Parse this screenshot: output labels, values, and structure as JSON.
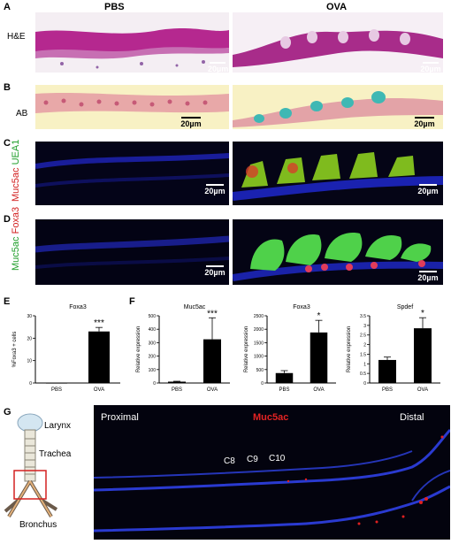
{
  "panel_a": {
    "letter": "A",
    "col_pbs": "PBS",
    "col_ova": "OVA",
    "row_label": "H&E",
    "scale": "20µm"
  },
  "panel_b": {
    "letter": "B",
    "row_label": "AB",
    "scale": "20µm"
  },
  "panel_c": {
    "letter": "C",
    "label_red": "Muc5ac",
    "label_green": "UEA1",
    "scale": "20µm"
  },
  "panel_d": {
    "letter": "D",
    "label_green": "Muc5ac",
    "label_red": "Foxa3",
    "scale": "20µm"
  },
  "panel_e": {
    "letter": "E"
  },
  "panel_f": {
    "letter": "F"
  },
  "panel_g": {
    "letter": "G",
    "larynx": "Larynx",
    "trachea": "Trachea",
    "bronchus": "Bronchus",
    "proximal": "Proximal",
    "marker": "Muc5ac",
    "distal": "Distal",
    "c8": "C8",
    "c9": "C9",
    "c10": "C10"
  },
  "chart_data": [
    {
      "type": "bar",
      "title": "Foxa3",
      "ylabel": "%Foxa3 + cells",
      "categories": [
        "PBS",
        "OVA"
      ],
      "values": [
        0,
        23
      ],
      "errors": [
        0,
        1.8
      ],
      "ylim": [
        0,
        30
      ],
      "yticks": [
        0,
        10,
        20,
        30
      ],
      "significance": [
        "",
        "***"
      ]
    },
    {
      "type": "bar",
      "title": "Muc5ac",
      "ylabel": "Relative expression",
      "categories": [
        "PBS",
        "OVA"
      ],
      "values": [
        10,
        325
      ],
      "errors": [
        3,
        160
      ],
      "ylim": [
        0,
        500
      ],
      "yticks": [
        0,
        100,
        200,
        300,
        400,
        500
      ],
      "significance": [
        "",
        "***"
      ]
    },
    {
      "type": "bar",
      "title": "Foxa3",
      "ylabel": "Relative expression",
      "categories": [
        "PBS",
        "OVA"
      ],
      "values": [
        370,
        1880
      ],
      "errors": [
        90,
        450
      ],
      "ylim": [
        0,
        2500
      ],
      "yticks": [
        0,
        500,
        1000,
        1500,
        2000,
        2500
      ],
      "significance": [
        "",
        "*"
      ]
    },
    {
      "type": "bar",
      "title": "Spdef",
      "ylabel": "Relative expression",
      "categories": [
        "PBS",
        "OVA"
      ],
      "values": [
        1.2,
        2.85
      ],
      "errors": [
        0.15,
        0.55
      ],
      "ylim": [
        0,
        3.5
      ],
      "yticks": [
        0,
        0.5,
        1.0,
        1.5,
        2.0,
        2.5,
        3.0,
        3.5
      ],
      "significance": [
        "",
        "*"
      ]
    }
  ]
}
